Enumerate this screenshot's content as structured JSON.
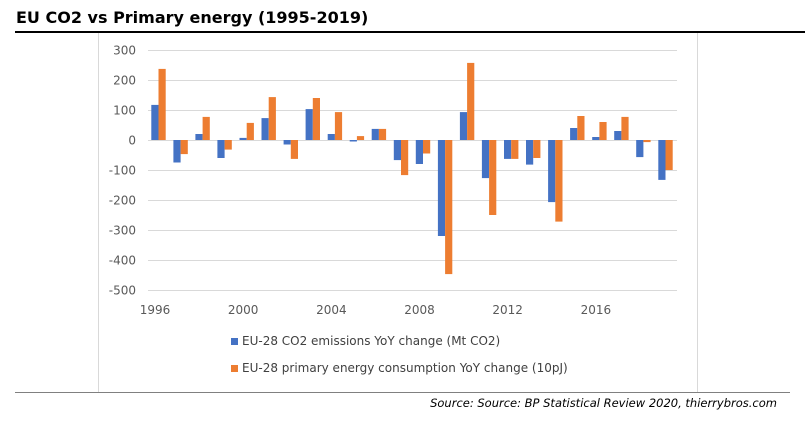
{
  "title": "EU CO2 vs Primary energy (1995-2019)",
  "source": "Source: Source: BP Statistical Review 2020, thierrybros.com",
  "chart_data": {
    "type": "bar",
    "title": "EU CO2 vs Primary energy (1995-2019)",
    "xlabel": "",
    "ylabel": "",
    "ylim": [
      -500,
      300
    ],
    "yticks": [
      300,
      200,
      100,
      0,
      -100,
      -200,
      -300,
      -400,
      -500
    ],
    "grid": true,
    "legend_position": "bottom",
    "categories": [
      1996,
      1997,
      1998,
      1999,
      2000,
      2001,
      2002,
      2003,
      2004,
      2005,
      2006,
      2007,
      2008,
      2009,
      2010,
      2011,
      2012,
      2013,
      2014,
      2015,
      2016,
      2017,
      2018,
      2019
    ],
    "xtick_labels": [
      "1996",
      "2000",
      "2004",
      "2008",
      "2012",
      "2016"
    ],
    "series": [
      {
        "name": "EU-28 CO2 emissions YoY change (Mt CO2)",
        "color": "#4472C4",
        "values": [
          117,
          -75,
          20,
          -60,
          7,
          73,
          -15,
          103,
          20,
          -5,
          37,
          -67,
          -80,
          -320,
          93,
          -127,
          -63,
          -82,
          -207,
          40,
          10,
          30,
          -57,
          -133
        ]
      },
      {
        "name": "EU-28 primary energy consumption YoY change (10pJ)",
        "color": "#ED7D31",
        "values": [
          237,
          -47,
          77,
          -32,
          57,
          143,
          -63,
          140,
          93,
          13,
          37,
          -117,
          -45,
          -447,
          257,
          -250,
          -63,
          -60,
          -272,
          80,
          60,
          77,
          -7,
          -100
        ]
      }
    ]
  }
}
